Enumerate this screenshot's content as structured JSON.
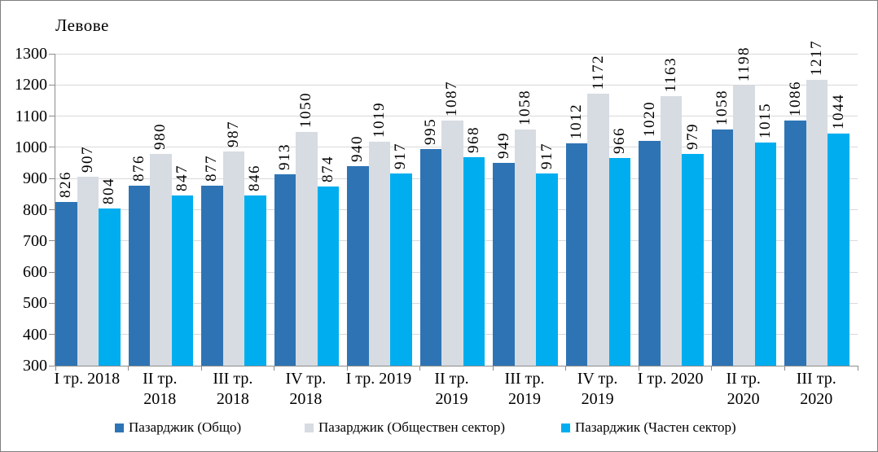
{
  "chart_data": {
    "type": "bar",
    "title": "Левове",
    "categories": [
      "I тр. 2018",
      "II тр.\n2018",
      "III тр.\n2018",
      "IV тр.\n2018",
      "I тр. 2019",
      "II тр.\n2019",
      "III тр.\n2019",
      "IV тр.\n2019",
      "I тр. 2020",
      "II тр.\n2020",
      "III тр.\n2020"
    ],
    "series": [
      {
        "name": "Пазарджик (Общо)",
        "color": "#2E74B5",
        "values": [
          826,
          876,
          877,
          913,
          940,
          995,
          949,
          1012,
          1020,
          1058,
          1086
        ]
      },
      {
        "name": "Пазарджик (Обществен сектор)",
        "color": "#D7DCE3",
        "values": [
          907,
          980,
          987,
          1050,
          1019,
          1087,
          1058,
          1172,
          1163,
          1198,
          1217
        ]
      },
      {
        "name": "Пазарджик (Частен сектор)",
        "color": "#00AEEF",
        "values": [
          804,
          847,
          846,
          874,
          917,
          968,
          917,
          966,
          979,
          1015,
          1044
        ]
      }
    ],
    "ylabel": "Левове",
    "xlabel": "",
    "ylim": [
      300,
      1300
    ],
    "ytick_step": 100,
    "grid": true,
    "legend_position": "bottom"
  },
  "colors": {
    "series1": "#2E74B5",
    "series2": "#D7DCE3",
    "series3": "#00AEEF",
    "gridline": "#D9D9D9",
    "axis": "#8C8C8C",
    "frame": "#7F7F7F"
  },
  "legend": {
    "items": [
      {
        "label": "Пазарджик (Общо)"
      },
      {
        "label": "Пазарджик (Обществен сектор)"
      },
      {
        "label": "Пазарджик (Частен сектор)"
      }
    ]
  }
}
